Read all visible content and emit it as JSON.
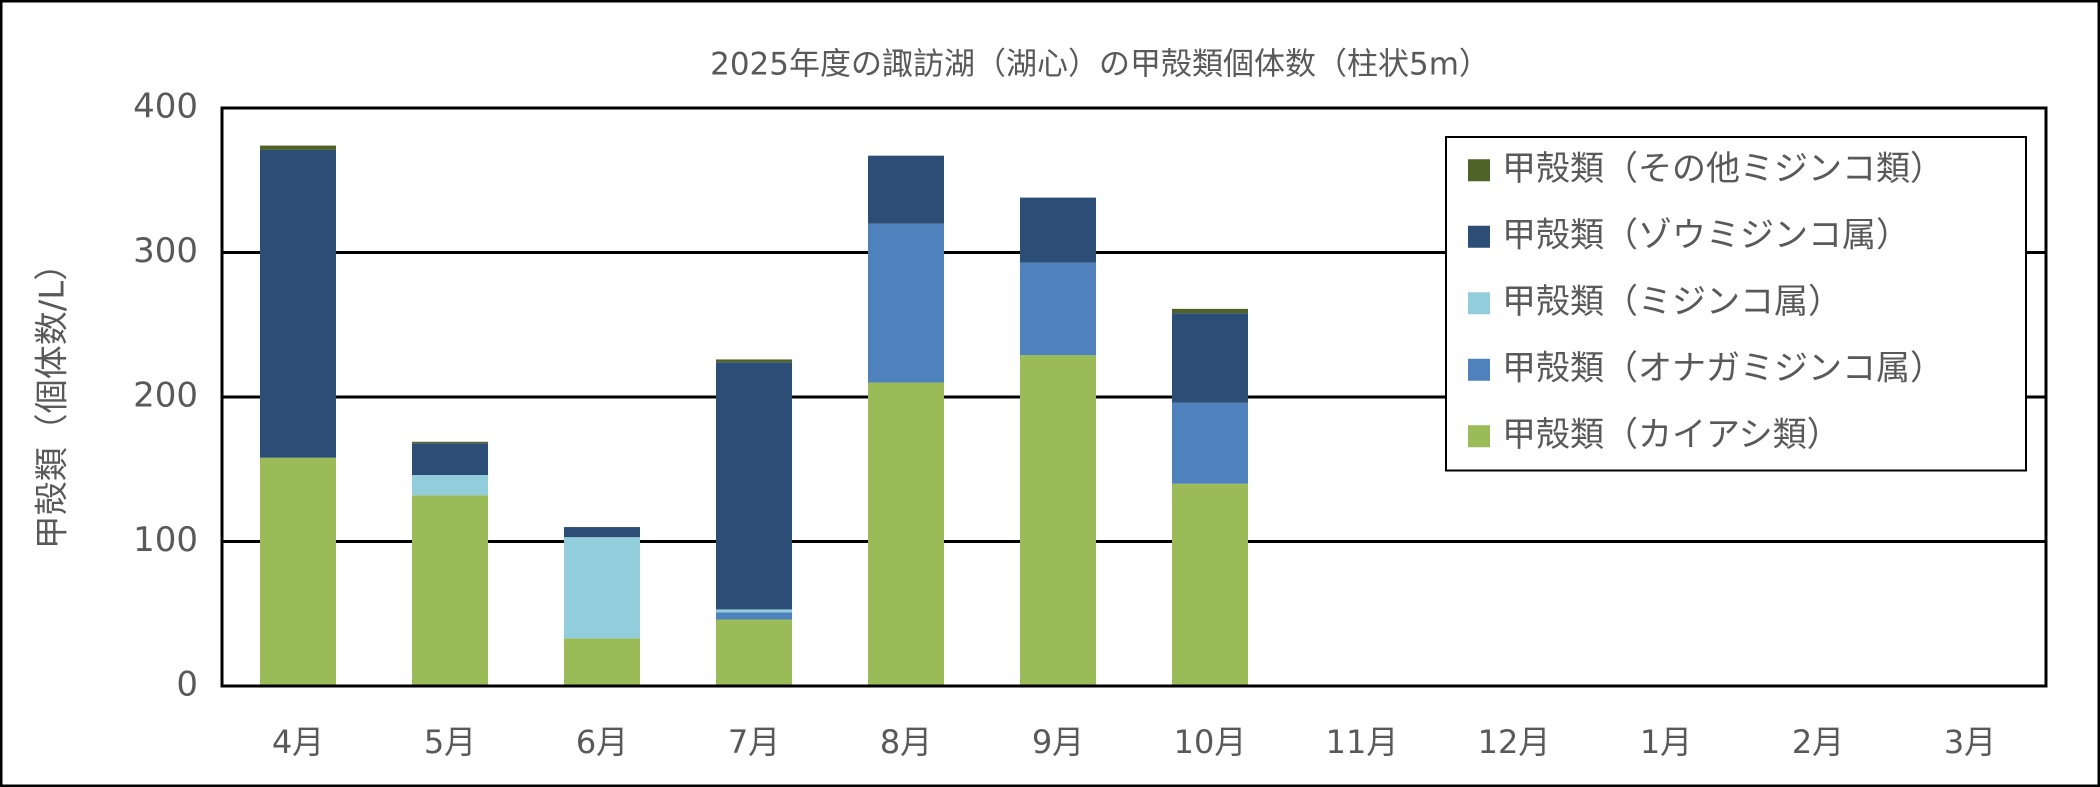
{
  "chart_data": {
    "type": "stacked_bar",
    "title": "2025年度の諏訪湖（湖心）の甲殻類個体数（柱状5m）",
    "y_label": "甲殻類（個体数/L）",
    "categories": [
      "4月",
      "5月",
      "6月",
      "7月",
      "8月",
      "9月",
      "10月",
      "11月",
      "12月",
      "1月",
      "2月",
      "3月"
    ],
    "series": [
      {
        "name": "甲殻類（カイアシ類）",
        "color": "#9bbb59",
        "values": [
          158,
          132,
          33,
          46,
          210,
          229,
          140,
          null,
          null,
          null,
          null,
          null
        ]
      },
      {
        "name": "甲殻類（オナガミジンコ属）",
        "color": "#4f81bd",
        "values": [
          0,
          0,
          0,
          5,
          110,
          64,
          56,
          null,
          null,
          null,
          null,
          null
        ]
      },
      {
        "name": "甲殻類（ミジンコ属）",
        "color": "#92cddc",
        "values": [
          0,
          14,
          70,
          2,
          0,
          0,
          0,
          null,
          null,
          null,
          null,
          null
        ]
      },
      {
        "name": "甲殻類（ゾウミジンコ属）",
        "color": "#2c4d75",
        "values": [
          213,
          22,
          7,
          171,
          47,
          45,
          62,
          null,
          null,
          null,
          null,
          null
        ]
      },
      {
        "name": "甲殻類（その他ミジンコ類）",
        "color": "#4f6228",
        "values": [
          3,
          1,
          0,
          2,
          0,
          0,
          3,
          null,
          null,
          null,
          null,
          null
        ]
      }
    ],
    "ylim": [
      0,
      400
    ],
    "yticks": [
      0,
      100,
      200,
      300,
      400
    ],
    "grid": true,
    "legend": "upper right"
  }
}
